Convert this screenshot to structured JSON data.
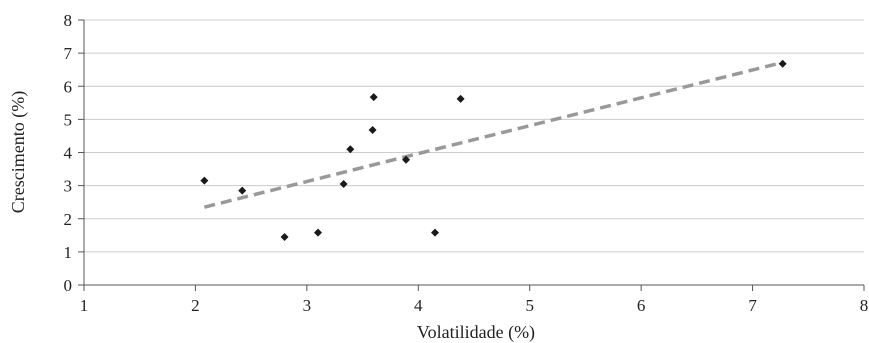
{
  "chart_data": {
    "type": "scatter",
    "title": "",
    "xlabel": "Volatilidade (%)",
    "ylabel": "Crescimento (%)",
    "xlim": [
      1,
      8
    ],
    "ylim": [
      0,
      8
    ],
    "xticks": [
      "1",
      "2",
      "3",
      "4",
      "5",
      "6",
      "7",
      "8"
    ],
    "yticks": [
      "0",
      "1",
      "2",
      "3",
      "4",
      "5",
      "6",
      "7",
      "8"
    ],
    "grid": "horizontal",
    "legend": "none",
    "colors": {
      "points": "#1a1a1a",
      "trendline": "#999999",
      "grid": "#cccccc",
      "axis": "#555555"
    },
    "series": [
      {
        "points": [
          {
            "x": 2.08,
            "y": 3.15
          },
          {
            "x": 2.42,
            "y": 2.85
          },
          {
            "x": 2.8,
            "y": 1.45
          },
          {
            "x": 3.1,
            "y": 1.58
          },
          {
            "x": 3.33,
            "y": 3.05
          },
          {
            "x": 3.39,
            "y": 4.1
          },
          {
            "x": 3.59,
            "y": 4.68
          },
          {
            "x": 3.6,
            "y": 5.67
          },
          {
            "x": 3.89,
            "y": 3.78
          },
          {
            "x": 4.15,
            "y": 1.58
          },
          {
            "x": 4.38,
            "y": 5.62
          },
          {
            "x": 7.27,
            "y": 6.68
          }
        ]
      }
    ],
    "trendline": {
      "type": "linear",
      "x_start": 2.08,
      "y_start": 2.35,
      "x_end": 7.27,
      "y_end": 6.72
    }
  }
}
